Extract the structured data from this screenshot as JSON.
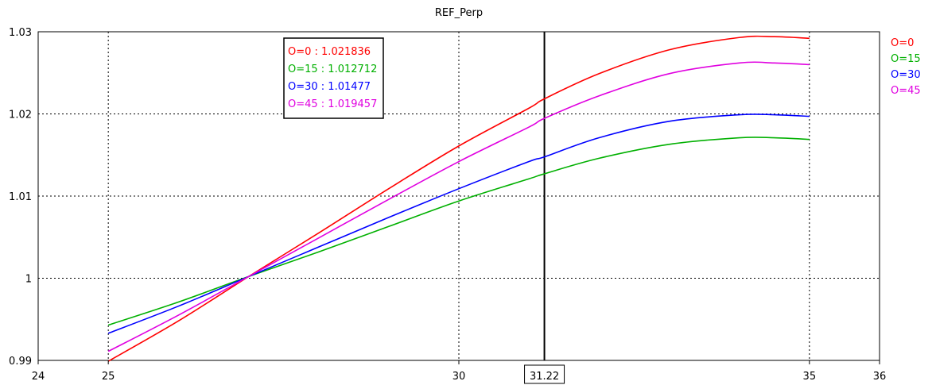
{
  "chart_data": {
    "type": "line",
    "title": "REF_Perp",
    "xlabel": "",
    "ylabel": "",
    "xlim": [
      24,
      36
    ],
    "ylim": [
      0.99,
      1.03
    ],
    "x_ticks": [
      "24",
      "25",
      "30",
      "35",
      "36"
    ],
    "y_ticks": [
      "0.99",
      "1",
      "1.01",
      "1.02",
      "1.03"
    ],
    "grid": true,
    "legend_position": "right",
    "cursor": {
      "x": 31.22,
      "label": "31.22"
    },
    "readout": [
      {
        "text": "O=0 : 1.021836",
        "color": "#ff0000"
      },
      {
        "text": "O=15 : 1.012712",
        "color": "#00b000"
      },
      {
        "text": "O=30 : 1.01477",
        "color": "#0000ff"
      },
      {
        "text": "O=45 : 1.019457",
        "color": "#e000e0"
      }
    ],
    "series": [
      {
        "name": "O=0",
        "color": "#ff0000",
        "x": [
          25,
          26,
          27,
          28,
          29,
          30,
          31,
          31.22,
          32,
          33,
          34,
          34.5,
          35
        ],
        "values": [
          0.9899,
          0.9948,
          1.0002,
          1.0055,
          1.0109,
          1.0161,
          1.0207,
          1.021836,
          1.0249,
          1.0278,
          1.0293,
          1.0294,
          1.0292
        ]
      },
      {
        "name": "O=15",
        "color": "#00b000",
        "x": [
          25,
          26,
          27,
          28,
          29,
          30,
          31,
          31.22,
          32,
          33,
          34,
          34.5,
          35
        ],
        "values": [
          0.9943,
          0.9971,
          1.0002,
          1.0032,
          1.0063,
          1.0094,
          1.0121,
          1.012712,
          1.0146,
          1.0163,
          1.0171,
          1.0171,
          1.0169
        ]
      },
      {
        "name": "O=30",
        "color": "#0000ff",
        "x": [
          25,
          26,
          27,
          28,
          29,
          30,
          31,
          31.22,
          32,
          33,
          34,
          34.5,
          35
        ],
        "values": [
          0.9933,
          0.9966,
          1.0002,
          1.0038,
          1.0074,
          1.0109,
          1.0142,
          1.01477,
          1.0171,
          1.0191,
          1.0199,
          1.0199,
          1.0197
        ]
      },
      {
        "name": "O=45",
        "color": "#e000e0",
        "x": [
          25,
          26,
          27,
          28,
          29,
          30,
          31,
          31.22,
          32,
          33,
          34,
          34.5,
          35
        ],
        "values": [
          0.9911,
          0.9955,
          1.0002,
          1.0049,
          1.0096,
          1.0142,
          1.0184,
          1.019457,
          1.0222,
          1.0249,
          1.0262,
          1.0262,
          1.026
        ]
      }
    ]
  }
}
